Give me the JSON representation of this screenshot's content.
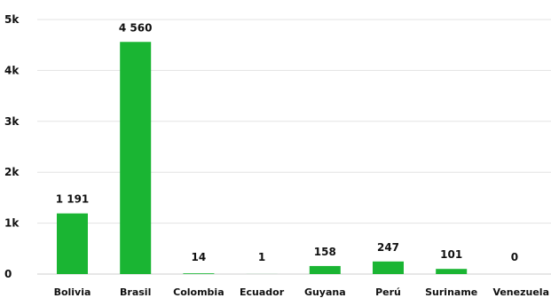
{
  "chart_data": {
    "type": "bar",
    "title": "",
    "xlabel": "",
    "ylabel": "",
    "categories": [
      "Bolivia",
      "Brasil",
      "Colombia",
      "Ecuador",
      "Guyana",
      "Perú",
      "Suriname",
      "Venezuela"
    ],
    "values": [
      1191,
      4560,
      14,
      1,
      158,
      247,
      101,
      0
    ],
    "data_labels": [
      "1 191",
      "4 560",
      "14",
      "1",
      "158",
      "247",
      "101",
      "0"
    ],
    "ylim": [
      0,
      5000
    ],
    "yticks": [
      0,
      1000,
      2000,
      3000,
      4000,
      5000
    ],
    "ytick_labels": [
      "0",
      "1k",
      "2k",
      "3k",
      "4k",
      "5k"
    ],
    "grid": true,
    "legend": "none",
    "bar_color": "#1ab533"
  }
}
